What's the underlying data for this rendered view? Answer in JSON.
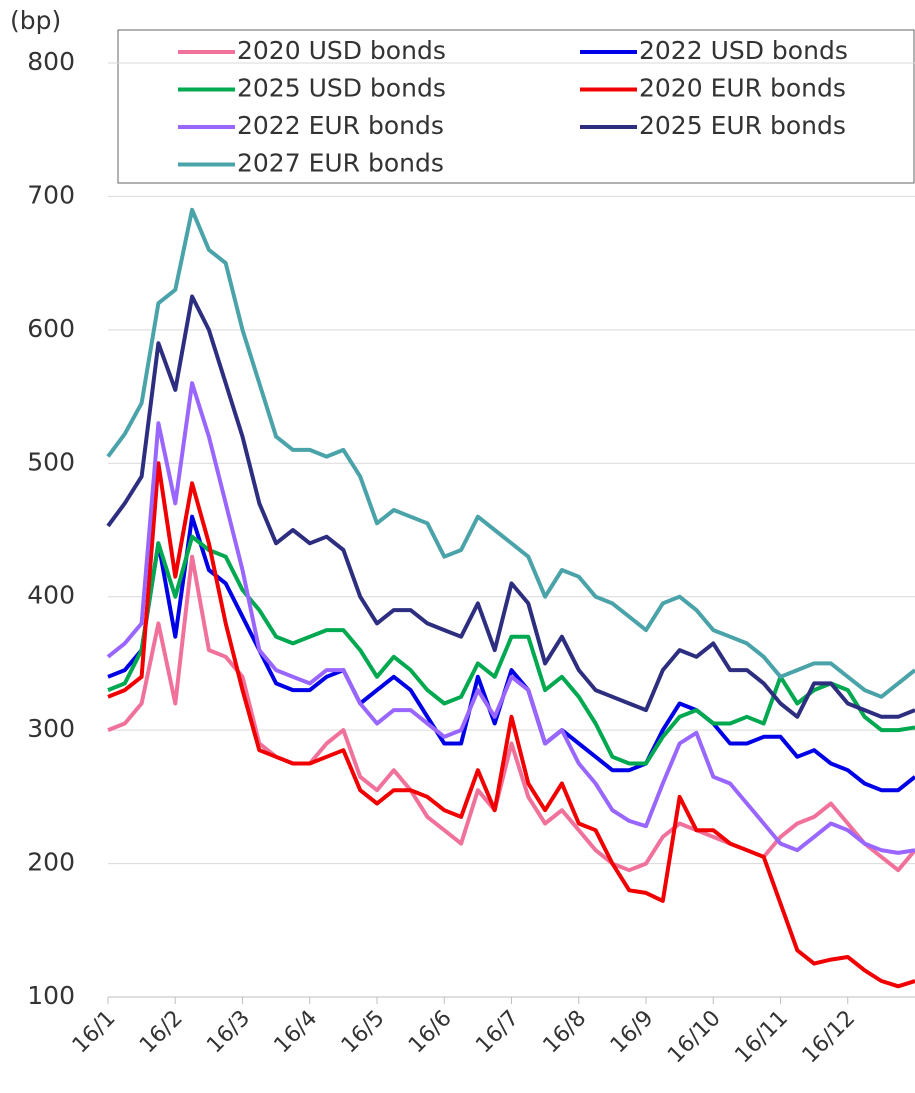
{
  "chart_data": {
    "type": "line",
    "y_label": "(bp)",
    "categories": [
      "16/1",
      null,
      null,
      null,
      "16/2",
      null,
      null,
      null,
      "16/3",
      null,
      null,
      null,
      "16/4",
      null,
      null,
      null,
      "16/5",
      null,
      null,
      null,
      "16/6",
      null,
      null,
      null,
      "16/7",
      null,
      null,
      null,
      "16/8",
      null,
      null,
      null,
      "16/9",
      null,
      null,
      null,
      "16/10",
      null,
      null,
      null,
      "16/11",
      null,
      null,
      null,
      "16/12",
      null,
      null,
      null,
      null
    ],
    "ylim": [
      100,
      800
    ],
    "yticks": [
      100,
      200,
      300,
      400,
      500,
      600,
      700,
      800
    ],
    "grid": true,
    "series": [
      {
        "name": "2020 USD bonds",
        "color": "#f0719a",
        "values": [
          300,
          305,
          320,
          380,
          320,
          430,
          360,
          355,
          340,
          290,
          280,
          275,
          275,
          290,
          300,
          265,
          255,
          270,
          255,
          235,
          225,
          215,
          255,
          240,
          290,
          250,
          230,
          240,
          225,
          210,
          200,
          195,
          200,
          220,
          230,
          225,
          220,
          215,
          210,
          205,
          220,
          230,
          235,
          245,
          230,
          215,
          205,
          195,
          210
        ]
      },
      {
        "name": "2022 USD bonds",
        "color": "#0000e6",
        "values": [
          340,
          345,
          360,
          440,
          370,
          460,
          420,
          410,
          385,
          360,
          335,
          330,
          330,
          340,
          345,
          320,
          330,
          340,
          330,
          310,
          290,
          290,
          340,
          305,
          345,
          330,
          290,
          300,
          290,
          280,
          270,
          270,
          275,
          300,
          320,
          315,
          305,
          290,
          290,
          295,
          295,
          280,
          285,
          275,
          270,
          260,
          255,
          255,
          265
        ]
      },
      {
        "name": "2025 USD bonds",
        "color": "#00a84f",
        "values": [
          330,
          335,
          360,
          440,
          400,
          445,
          435,
          430,
          405,
          390,
          370,
          365,
          370,
          375,
          375,
          360,
          340,
          355,
          345,
          330,
          320,
          325,
          350,
          340,
          370,
          370,
          330,
          340,
          325,
          305,
          280,
          275,
          275,
          295,
          310,
          315,
          305,
          305,
          310,
          305,
          340,
          320,
          330,
          335,
          330,
          310,
          300,
          300,
          302
        ]
      },
      {
        "name": "2020 EUR bonds",
        "color": "#f00000",
        "values": [
          325,
          330,
          340,
          500,
          415,
          485,
          440,
          380,
          330,
          285,
          280,
          275,
          275,
          280,
          285,
          255,
          245,
          255,
          255,
          250,
          240,
          235,
          270,
          240,
          310,
          260,
          240,
          260,
          230,
          225,
          200,
          180,
          178,
          172,
          250,
          225,
          225,
          215,
          210,
          205,
          170,
          135,
          125,
          128,
          130,
          120,
          112,
          108,
          112
        ]
      },
      {
        "name": "2022 EUR bonds",
        "color": "#9966ff",
        "values": [
          355,
          365,
          380,
          530,
          470,
          560,
          520,
          470,
          420,
          360,
          345,
          340,
          335,
          345,
          345,
          320,
          305,
          315,
          315,
          305,
          295,
          300,
          330,
          310,
          340,
          330,
          290,
          300,
          275,
          260,
          240,
          232,
          228,
          260,
          290,
          298,
          265,
          260,
          245,
          230,
          215,
          210,
          220,
          230,
          225,
          215,
          210,
          208,
          210
        ]
      },
      {
        "name": "2025 EUR bonds",
        "color": "#2e2e80",
        "values": [
          453,
          470,
          490,
          590,
          555,
          625,
          600,
          560,
          520,
          470,
          440,
          450,
          440,
          445,
          435,
          400,
          380,
          390,
          390,
          380,
          375,
          370,
          395,
          360,
          410,
          395,
          350,
          370,
          345,
          330,
          325,
          320,
          315,
          345,
          360,
          355,
          365,
          345,
          345,
          335,
          320,
          310,
          335,
          335,
          320,
          315,
          310,
          310,
          315
        ]
      },
      {
        "name": "2027 EUR bonds",
        "color": "#4aa3a8",
        "values": [
          505,
          522,
          545,
          620,
          630,
          690,
          660,
          650,
          600,
          560,
          520,
          510,
          510,
          505,
          510,
          490,
          455,
          465,
          460,
          455,
          430,
          435,
          460,
          450,
          440,
          430,
          400,
          420,
          415,
          400,
          395,
          385,
          375,
          395,
          400,
          390,
          375,
          370,
          365,
          355,
          340,
          345,
          350,
          350,
          340,
          330,
          325,
          335,
          345
        ]
      }
    ]
  }
}
